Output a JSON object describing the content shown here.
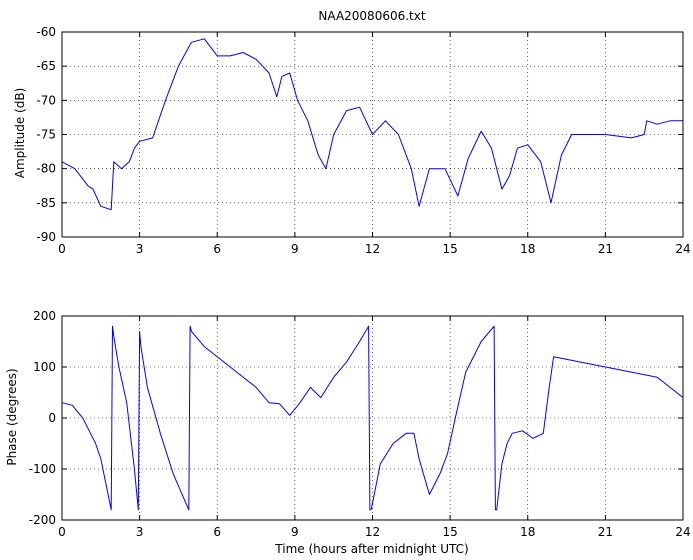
{
  "figure": {
    "background": "#ffffff",
    "line_color": "#0000ff"
  },
  "chart_data": [
    {
      "type": "line",
      "title": "NAA20080606.txt",
      "xlabel": "",
      "ylabel": "Amplitude (dB)",
      "xlim": [
        0,
        24
      ],
      "ylim": [
        -90,
        -60
      ],
      "xticks": [
        "0",
        "3",
        "6",
        "9",
        "12",
        "15",
        "18",
        "21",
        "24"
      ],
      "yticks": [
        "-60",
        "-65",
        "-70",
        "-75",
        "-80",
        "-85",
        "-90"
      ],
      "grid": true,
      "series": [
        {
          "color": "#0000ff",
          "x": [
            0,
            0.5,
            1.0,
            1.2,
            1.5,
            1.9,
            2.0,
            2.3,
            2.6,
            2.8,
            3.0,
            3.5,
            4.0,
            4.5,
            5.0,
            5.5,
            6.0,
            6.5,
            7.0,
            7.5,
            8.0,
            8.3,
            8.5,
            8.8,
            9.1,
            9.5,
            9.9,
            10.2,
            10.5,
            11.0,
            11.5,
            12.0,
            12.5,
            13.0,
            13.5,
            13.8,
            14.2,
            14.8,
            15.3,
            15.7,
            16.2,
            16.6,
            17.0,
            17.3,
            17.6,
            18.0,
            18.5,
            18.9,
            19.3,
            19.7,
            20.0,
            21.0,
            22.0,
            22.5,
            22.6,
            23.0,
            23.5,
            24.0
          ],
          "y": [
            -79,
            -80,
            -82.5,
            -83,
            -85.5,
            -86,
            -79,
            -80,
            -79,
            -77,
            -76,
            -75.5,
            -70,
            -65,
            -61.5,
            -61,
            -63.5,
            -63.5,
            -63,
            -64,
            -66,
            -69.5,
            -66.5,
            -66,
            -70,
            -73,
            -78,
            -80,
            -75,
            -71.5,
            -71,
            -75,
            -73,
            -75,
            -80,
            -85.5,
            -80,
            -80,
            -84,
            -78.5,
            -74.5,
            -77,
            -83,
            -81,
            -77,
            -76.5,
            -79,
            -85,
            -78,
            -75,
            -75,
            -75,
            -75.5,
            -75,
            -73,
            -73.5,
            -73,
            -73
          ]
        }
      ]
    },
    {
      "type": "line",
      "title": "",
      "xlabel": "Time (hours after midnight UTC)",
      "ylabel": "Phase (degrees)",
      "xlim": [
        0,
        24
      ],
      "ylim": [
        -200,
        200
      ],
      "xticks": [
        "0",
        "3",
        "6",
        "9",
        "12",
        "15",
        "18",
        "21",
        "24"
      ],
      "yticks": [
        "200",
        "100",
        "0",
        "-100",
        "-200"
      ],
      "grid": true,
      "series": [
        {
          "color": "#0000ff",
          "x": [
            0,
            0.4,
            0.8,
            1.0,
            1.3,
            1.5,
            1.9,
            1.95,
            2.0,
            2.2,
            2.5,
            2.8,
            2.95,
            3.0,
            3.05,
            3.3,
            3.8,
            4.3,
            4.9,
            4.95,
            5.0,
            5.5,
            6.5,
            7.5,
            8.0,
            8.4,
            8.8,
            9.2,
            9.6,
            10.0,
            10.5,
            11.0,
            11.5,
            11.85,
            11.9,
            11.95,
            12.3,
            12.8,
            13.3,
            13.6,
            13.8,
            14.2,
            14.6,
            14.9,
            15.2,
            15.6,
            16.2,
            16.7,
            16.75,
            16.8,
            17.0,
            17.2,
            17.4,
            17.8,
            18.2,
            18.6,
            18.8,
            19.0,
            20.0,
            21.0,
            22.0,
            23.0,
            23.5,
            24.0
          ],
          "y": [
            30,
            25,
            0,
            -20,
            -50,
            -80,
            -180,
            180,
            160,
            100,
            30,
            -100,
            -180,
            170,
            140,
            60,
            -30,
            -110,
            -180,
            180,
            170,
            140,
            100,
            60,
            30,
            28,
            5,
            30,
            60,
            40,
            80,
            110,
            150,
            180,
            -180,
            -180,
            -90,
            -50,
            -30,
            -30,
            -80,
            -150,
            -110,
            -70,
            0,
            90,
            150,
            180,
            -180,
            -180,
            -90,
            -50,
            -30,
            -25,
            -40,
            -30,
            50,
            120,
            110,
            100,
            90,
            80,
            60,
            40
          ]
        }
      ]
    }
  ]
}
